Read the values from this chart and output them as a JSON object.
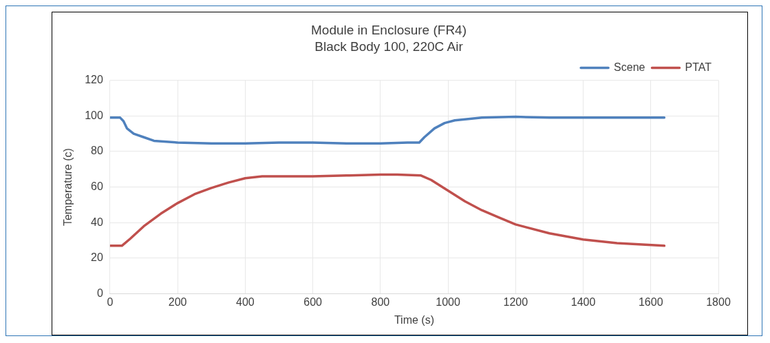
{
  "chart_data": {
    "type": "line",
    "title": "Module in Enclosure (FR4)",
    "subtitle": "Black Body 100, 220C Air",
    "xlabel": "Time (s)",
    "ylabel": "Temperature (c)",
    "xlim": [
      0,
      1800
    ],
    "xticks": [
      0,
      200,
      400,
      600,
      800,
      1000,
      1200,
      1400,
      1600,
      1800
    ],
    "ylim": [
      0,
      120
    ],
    "yticks": [
      0,
      20,
      40,
      60,
      80,
      100,
      120
    ],
    "grid": true,
    "legend": "top right",
    "marker": "none",
    "line_style": "solid",
    "series": [
      {
        "name": "Scene",
        "color": "#4f81bd",
        "x": [
          0,
          30,
          40,
          50,
          70,
          100,
          130,
          200,
          300,
          400,
          500,
          600,
          700,
          800,
          880,
          915,
          930,
          960,
          990,
          1020,
          1100,
          1200,
          1300,
          1400,
          1500,
          1640
        ],
        "values": [
          99,
          99,
          97,
          93,
          90,
          88,
          86,
          85,
          84.5,
          84.5,
          85,
          85,
          84.5,
          84.5,
          85,
          85,
          88,
          93,
          96,
          97.5,
          99,
          99.5,
          99,
          99,
          99,
          99
        ]
      },
      {
        "name": "PTAT",
        "color": "#c0504d",
        "x": [
          0,
          35,
          60,
          100,
          150,
          200,
          250,
          300,
          350,
          400,
          450,
          500,
          600,
          700,
          800,
          850,
          920,
          950,
          1000,
          1050,
          1100,
          1150,
          1200,
          1300,
          1400,
          1500,
          1640
        ],
        "values": [
          27,
          27,
          31,
          38,
          45,
          51,
          56,
          59.5,
          62.5,
          65,
          66,
          66,
          66,
          66.5,
          67,
          67,
          66.5,
          64,
          58,
          52,
          47,
          43,
          39,
          34,
          30.5,
          28.5,
          27
        ]
      }
    ]
  }
}
